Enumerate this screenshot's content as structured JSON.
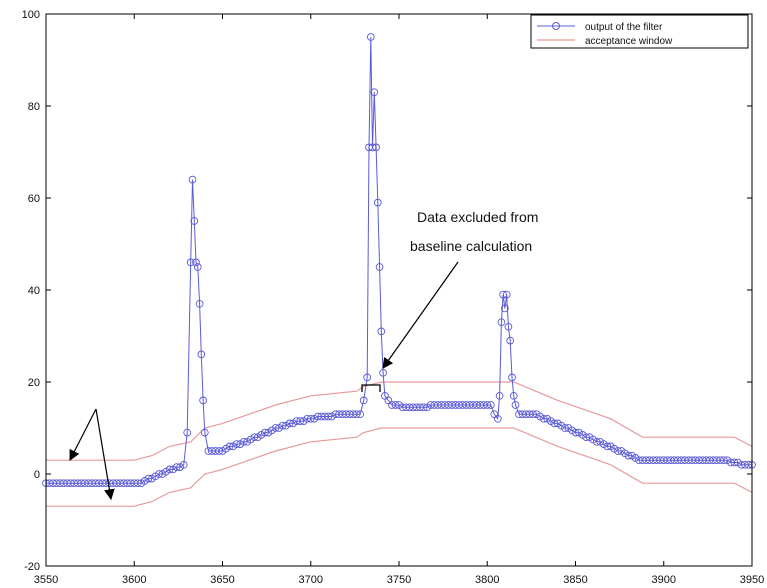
{
  "chart_data": {
    "type": "line",
    "xlim": [
      3550,
      3950
    ],
    "ylim": [
      -20,
      100
    ],
    "xticks": [
      3550,
      3600,
      3650,
      3700,
      3750,
      3800,
      3850,
      3900,
      3950
    ],
    "yticks": [
      -20,
      0,
      20,
      40,
      60,
      80,
      100
    ],
    "grid": false,
    "legend_position": "top-right",
    "colors": {
      "filter": "#5b5bd6",
      "window": "#e89a9a",
      "axis": "#000000"
    },
    "annotations": [
      {
        "lines": [
          "Data excluded from",
          "baseline calculation"
        ]
      }
    ],
    "series": [
      {
        "name": "output of the filter",
        "marker": "diamond-circle",
        "color": "#5b5bd6",
        "points": [
          [
            3550,
            -2
          ],
          [
            3552,
            -2
          ],
          [
            3554,
            -2
          ],
          [
            3556,
            -2
          ],
          [
            3558,
            -2
          ],
          [
            3560,
            -2
          ],
          [
            3562,
            -2
          ],
          [
            3564,
            -2
          ],
          [
            3566,
            -2
          ],
          [
            3568,
            -2
          ],
          [
            3570,
            -2
          ],
          [
            3572,
            -2
          ],
          [
            3574,
            -2
          ],
          [
            3576,
            -2
          ],
          [
            3578,
            -2
          ],
          [
            3580,
            -2
          ],
          [
            3582,
            -2
          ],
          [
            3584,
            -2
          ],
          [
            3586,
            -2
          ],
          [
            3588,
            -2
          ],
          [
            3590,
            -2
          ],
          [
            3592,
            -2
          ],
          [
            3594,
            -2
          ],
          [
            3596,
            -2
          ],
          [
            3598,
            -2
          ],
          [
            3600,
            -2
          ],
          [
            3602,
            -2
          ],
          [
            3604,
            -2
          ],
          [
            3606,
            -1.5
          ],
          [
            3608,
            -1
          ],
          [
            3610,
            -1
          ],
          [
            3612,
            -0.5
          ],
          [
            3614,
            0
          ],
          [
            3616,
            0
          ],
          [
            3618,
            0.5
          ],
          [
            3620,
            1
          ],
          [
            3622,
            1
          ],
          [
            3624,
            1.5
          ],
          [
            3626,
            1.5
          ],
          [
            3628,
            2
          ],
          [
            3630,
            9
          ],
          [
            3632,
            46
          ],
          [
            3633,
            64
          ],
          [
            3634,
            55
          ],
          [
            3635,
            46
          ],
          [
            3636,
            45
          ],
          [
            3637,
            37
          ],
          [
            3638,
            26
          ],
          [
            3639,
            16
          ],
          [
            3640,
            9
          ],
          [
            3642,
            5
          ],
          [
            3644,
            5
          ],
          [
            3646,
            5
          ],
          [
            3648,
            5
          ],
          [
            3650,
            5
          ],
          [
            3652,
            5.5
          ],
          [
            3654,
            6
          ],
          [
            3656,
            6
          ],
          [
            3658,
            6.5
          ],
          [
            3660,
            6.5
          ],
          [
            3662,
            7
          ],
          [
            3664,
            7
          ],
          [
            3666,
            7.5
          ],
          [
            3668,
            8
          ],
          [
            3670,
            8
          ],
          [
            3672,
            8.5
          ],
          [
            3674,
            9
          ],
          [
            3676,
            9
          ],
          [
            3678,
            9.5
          ],
          [
            3680,
            10
          ],
          [
            3682,
            10
          ],
          [
            3684,
            10.5
          ],
          [
            3686,
            10.5
          ],
          [
            3688,
            11
          ],
          [
            3690,
            11
          ],
          [
            3692,
            11.5
          ],
          [
            3694,
            11.5
          ],
          [
            3696,
            11.5
          ],
          [
            3698,
            12
          ],
          [
            3700,
            12
          ],
          [
            3702,
            12
          ],
          [
            3704,
            12.5
          ],
          [
            3706,
            12.5
          ],
          [
            3708,
            12.5
          ],
          [
            3710,
            12.5
          ],
          [
            3712,
            12.5
          ],
          [
            3714,
            13
          ],
          [
            3716,
            13
          ],
          [
            3718,
            13
          ],
          [
            3720,
            13
          ],
          [
            3722,
            13
          ],
          [
            3724,
            13
          ],
          [
            3726,
            13
          ],
          [
            3728,
            13
          ],
          [
            3730,
            16
          ],
          [
            3732,
            21
          ],
          [
            3733,
            71
          ],
          [
            3734,
            95
          ],
          [
            3735,
            71
          ],
          [
            3736,
            83
          ],
          [
            3737,
            71
          ],
          [
            3738,
            59
          ],
          [
            3739,
            45
          ],
          [
            3740,
            31
          ],
          [
            3741,
            22
          ],
          [
            3742,
            17
          ],
          [
            3744,
            16
          ],
          [
            3746,
            15
          ],
          [
            3748,
            15
          ],
          [
            3750,
            15
          ],
          [
            3752,
            14.5
          ],
          [
            3754,
            14.5
          ],
          [
            3756,
            14.5
          ],
          [
            3758,
            14.5
          ],
          [
            3760,
            14.5
          ],
          [
            3762,
            14.5
          ],
          [
            3764,
            14.5
          ],
          [
            3766,
            14.5
          ],
          [
            3768,
            15
          ],
          [
            3770,
            15
          ],
          [
            3772,
            15
          ],
          [
            3774,
            15
          ],
          [
            3776,
            15
          ],
          [
            3778,
            15
          ],
          [
            3780,
            15
          ],
          [
            3782,
            15
          ],
          [
            3784,
            15
          ],
          [
            3786,
            15
          ],
          [
            3788,
            15
          ],
          [
            3790,
            15
          ],
          [
            3792,
            15
          ],
          [
            3794,
            15
          ],
          [
            3796,
            15
          ],
          [
            3798,
            15
          ],
          [
            3800,
            15
          ],
          [
            3802,
            15
          ],
          [
            3804,
            13
          ],
          [
            3806,
            12
          ],
          [
            3807,
            17
          ],
          [
            3808,
            33
          ],
          [
            3809,
            39
          ],
          [
            3810,
            36
          ],
          [
            3811,
            39
          ],
          [
            3812,
            32
          ],
          [
            3813,
            29
          ],
          [
            3814,
            21
          ],
          [
            3815,
            17
          ],
          [
            3816,
            15
          ],
          [
            3818,
            13
          ],
          [
            3820,
            13
          ],
          [
            3822,
            13
          ],
          [
            3824,
            13
          ],
          [
            3826,
            13
          ],
          [
            3828,
            13
          ],
          [
            3830,
            12.5
          ],
          [
            3832,
            12
          ],
          [
            3834,
            12
          ],
          [
            3836,
            11.5
          ],
          [
            3838,
            11
          ],
          [
            3840,
            11
          ],
          [
            3842,
            10.5
          ],
          [
            3844,
            10
          ],
          [
            3846,
            10
          ],
          [
            3848,
            9.5
          ],
          [
            3850,
            9
          ],
          [
            3852,
            9
          ],
          [
            3854,
            8.5
          ],
          [
            3856,
            8
          ],
          [
            3858,
            8
          ],
          [
            3860,
            7.5
          ],
          [
            3862,
            7
          ],
          [
            3864,
            7
          ],
          [
            3866,
            6.5
          ],
          [
            3868,
            6
          ],
          [
            3870,
            6
          ],
          [
            3872,
            5.5
          ],
          [
            3874,
            5
          ],
          [
            3876,
            5
          ],
          [
            3878,
            4.5
          ],
          [
            3880,
            4
          ],
          [
            3882,
            4
          ],
          [
            3884,
            3.5
          ],
          [
            3886,
            3
          ],
          [
            3888,
            3
          ],
          [
            3890,
            3
          ],
          [
            3892,
            3
          ],
          [
            3894,
            3
          ],
          [
            3896,
            3
          ],
          [
            3898,
            3
          ],
          [
            3900,
            3
          ],
          [
            3902,
            3
          ],
          [
            3904,
            3
          ],
          [
            3906,
            3
          ],
          [
            3908,
            3
          ],
          [
            3910,
            3
          ],
          [
            3912,
            3
          ],
          [
            3914,
            3
          ],
          [
            3916,
            3
          ],
          [
            3918,
            3
          ],
          [
            3920,
            3
          ],
          [
            3922,
            3
          ],
          [
            3924,
            3
          ],
          [
            3926,
            3
          ],
          [
            3928,
            3
          ],
          [
            3930,
            3
          ],
          [
            3932,
            3
          ],
          [
            3934,
            3
          ],
          [
            3936,
            3
          ],
          [
            3938,
            2.5
          ],
          [
            3940,
            2.5
          ],
          [
            3942,
            2.5
          ],
          [
            3944,
            2
          ],
          [
            3946,
            2
          ],
          [
            3948,
            2
          ],
          [
            3950,
            2
          ]
        ]
      },
      {
        "name": "acceptance window",
        "color": "#e89a9a",
        "upper": [
          [
            3550,
            3
          ],
          [
            3600,
            3
          ],
          [
            3610,
            4
          ],
          [
            3620,
            6
          ],
          [
            3632,
            7
          ],
          [
            3640,
            10
          ],
          [
            3650,
            11
          ],
          [
            3680,
            15
          ],
          [
            3700,
            17
          ],
          [
            3726,
            18
          ],
          [
            3730,
            19
          ],
          [
            3740,
            20
          ],
          [
            3760,
            20
          ],
          [
            3800,
            20
          ],
          [
            3815,
            20
          ],
          [
            3840,
            16
          ],
          [
            3870,
            12
          ],
          [
            3888,
            8
          ],
          [
            3940,
            8
          ],
          [
            3950,
            6
          ]
        ],
        "lower": [
          [
            3550,
            -7
          ],
          [
            3600,
            -7
          ],
          [
            3610,
            -6
          ],
          [
            3620,
            -4
          ],
          [
            3632,
            -3
          ],
          [
            3640,
            0
          ],
          [
            3650,
            1
          ],
          [
            3680,
            5
          ],
          [
            3700,
            7
          ],
          [
            3726,
            8
          ],
          [
            3730,
            9
          ],
          [
            3740,
            10
          ],
          [
            3760,
            10
          ],
          [
            3800,
            10
          ],
          [
            3815,
            10
          ],
          [
            3840,
            6
          ],
          [
            3870,
            2
          ],
          [
            3888,
            -2
          ],
          [
            3940,
            -2
          ],
          [
            3950,
            -4
          ]
        ]
      }
    ]
  }
}
